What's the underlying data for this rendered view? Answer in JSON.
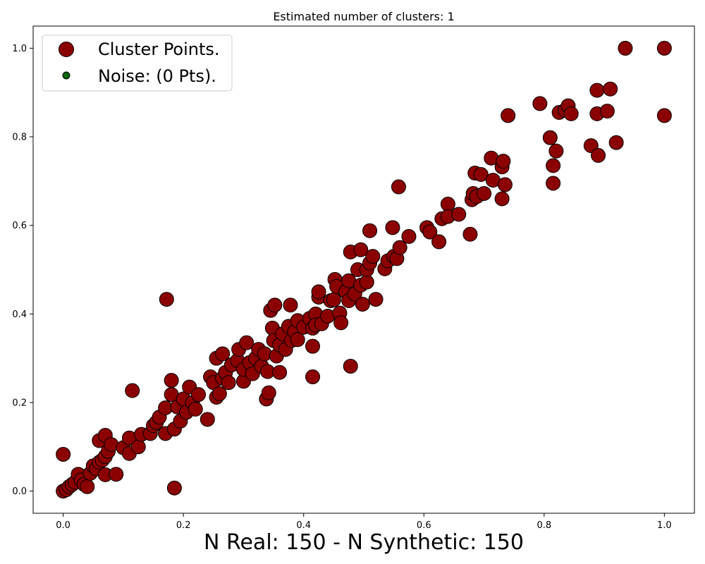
{
  "chart_data": {
    "type": "scatter",
    "title": "Estimated number of clusters: 1",
    "xlabel": "N Real: 150 - N Synthetic: 150",
    "ylabel": "",
    "xlim": [
      -0.05,
      1.05
    ],
    "ylim": [
      -0.05,
      1.05
    ],
    "xticks": [
      "0.0",
      "0.2",
      "0.4",
      "0.6",
      "0.8",
      "1.0"
    ],
    "yticks": [
      "0.0",
      "0.2",
      "0.4",
      "0.6",
      "0.8",
      "1.0"
    ],
    "grid": false,
    "legend_position": "top-left",
    "legend": [
      {
        "label": "Cluster Points.",
        "color": "#8b0000",
        "marker": "large-circle"
      },
      {
        "label": "Noise: (0 Pts).",
        "color": "#006400",
        "marker": "small-circle"
      }
    ],
    "series": [
      {
        "name": "Cluster Points.",
        "color": "#8b0000",
        "points": [
          [
            0.0,
            0.0
          ],
          [
            0.005,
            0.003
          ],
          [
            0.01,
            0.01
          ],
          [
            0.015,
            0.015
          ],
          [
            0.02,
            0.02
          ],
          [
            0.0,
            0.083
          ],
          [
            0.025,
            0.038
          ],
          [
            0.03,
            0.025
          ],
          [
            0.035,
            0.015
          ],
          [
            0.04,
            0.01
          ],
          [
            0.045,
            0.04
          ],
          [
            0.05,
            0.057
          ],
          [
            0.055,
            0.05
          ],
          [
            0.06,
            0.065
          ],
          [
            0.06,
            0.114
          ],
          [
            0.065,
            0.07
          ],
          [
            0.07,
            0.078
          ],
          [
            0.07,
            0.126
          ],
          [
            0.075,
            0.09
          ],
          [
            0.08,
            0.105
          ],
          [
            0.07,
            0.037
          ],
          [
            0.088,
            0.038
          ],
          [
            0.1,
            0.098
          ],
          [
            0.11,
            0.085
          ],
          [
            0.11,
            0.12
          ],
          [
            0.115,
            0.227
          ],
          [
            0.125,
            0.1
          ],
          [
            0.13,
            0.128
          ],
          [
            0.145,
            0.13
          ],
          [
            0.15,
            0.148
          ],
          [
            0.155,
            0.155
          ],
          [
            0.16,
            0.167
          ],
          [
            0.17,
            0.13
          ],
          [
            0.17,
            0.188
          ],
          [
            0.172,
            0.433
          ],
          [
            0.18,
            0.25
          ],
          [
            0.18,
            0.218
          ],
          [
            0.185,
            0.14
          ],
          [
            0.185,
            0.007
          ],
          [
            0.19,
            0.19
          ],
          [
            0.195,
            0.158
          ],
          [
            0.2,
            0.208
          ],
          [
            0.205,
            0.178
          ],
          [
            0.21,
            0.235
          ],
          [
            0.215,
            0.2
          ],
          [
            0.22,
            0.185
          ],
          [
            0.225,
            0.218
          ],
          [
            0.24,
            0.162
          ],
          [
            0.245,
            0.258
          ],
          [
            0.25,
            0.245
          ],
          [
            0.255,
            0.212
          ],
          [
            0.255,
            0.3
          ],
          [
            0.26,
            0.22
          ],
          [
            0.265,
            0.255
          ],
          [
            0.265,
            0.31
          ],
          [
            0.27,
            0.268
          ],
          [
            0.275,
            0.245
          ],
          [
            0.28,
            0.285
          ],
          [
            0.29,
            0.295
          ],
          [
            0.292,
            0.32
          ],
          [
            0.3,
            0.248
          ],
          [
            0.3,
            0.275
          ],
          [
            0.305,
            0.335
          ],
          [
            0.31,
            0.29
          ],
          [
            0.315,
            0.265
          ],
          [
            0.32,
            0.3
          ],
          [
            0.325,
            0.32
          ],
          [
            0.33,
            0.282
          ],
          [
            0.335,
            0.31
          ],
          [
            0.338,
            0.208
          ],
          [
            0.34,
            0.27
          ],
          [
            0.342,
            0.222
          ],
          [
            0.345,
            0.408
          ],
          [
            0.348,
            0.368
          ],
          [
            0.35,
            0.34
          ],
          [
            0.352,
            0.42
          ],
          [
            0.355,
            0.305
          ],
          [
            0.36,
            0.268
          ],
          [
            0.36,
            0.33
          ],
          [
            0.365,
            0.355
          ],
          [
            0.37,
            0.32
          ],
          [
            0.375,
            0.372
          ],
          [
            0.378,
            0.42
          ],
          [
            0.38,
            0.34
          ],
          [
            0.385,
            0.36
          ],
          [
            0.39,
            0.385
          ],
          [
            0.39,
            0.342
          ],
          [
            0.4,
            0.37
          ],
          [
            0.41,
            0.39
          ],
          [
            0.415,
            0.368
          ],
          [
            0.415,
            0.258
          ],
          [
            0.415,
            0.327
          ],
          [
            0.42,
            0.4
          ],
          [
            0.42,
            0.375
          ],
          [
            0.425,
            0.438
          ],
          [
            0.425,
            0.45
          ],
          [
            0.43,
            0.378
          ],
          [
            0.44,
            0.395
          ],
          [
            0.445,
            0.43
          ],
          [
            0.45,
            0.432
          ],
          [
            0.452,
            0.478
          ],
          [
            0.455,
            0.462
          ],
          [
            0.46,
            0.402
          ],
          [
            0.462,
            0.38
          ],
          [
            0.47,
            0.45
          ],
          [
            0.475,
            0.43
          ],
          [
            0.475,
            0.475
          ],
          [
            0.478,
            0.282
          ],
          [
            0.478,
            0.54
          ],
          [
            0.485,
            0.445
          ],
          [
            0.49,
            0.5
          ],
          [
            0.495,
            0.545
          ],
          [
            0.495,
            0.465
          ],
          [
            0.498,
            0.422
          ],
          [
            0.505,
            0.472
          ],
          [
            0.505,
            0.5
          ],
          [
            0.51,
            0.515
          ],
          [
            0.51,
            0.588
          ],
          [
            0.515,
            0.53
          ],
          [
            0.52,
            0.433
          ],
          [
            0.535,
            0.502
          ],
          [
            0.54,
            0.52
          ],
          [
            0.548,
            0.595
          ],
          [
            0.55,
            0.53
          ],
          [
            0.555,
            0.525
          ],
          [
            0.558,
            0.687
          ],
          [
            0.56,
            0.55
          ],
          [
            0.575,
            0.575
          ],
          [
            0.605,
            0.595
          ],
          [
            0.61,
            0.585
          ],
          [
            0.625,
            0.563
          ],
          [
            0.63,
            0.615
          ],
          [
            0.64,
            0.648
          ],
          [
            0.64,
            0.62
          ],
          [
            0.658,
            0.625
          ],
          [
            0.677,
            0.58
          ],
          [
            0.68,
            0.658
          ],
          [
            0.682,
            0.672
          ],
          [
            0.685,
            0.718
          ],
          [
            0.688,
            0.665
          ],
          [
            0.695,
            0.715
          ],
          [
            0.7,
            0.672
          ],
          [
            0.712,
            0.752
          ],
          [
            0.715,
            0.702
          ],
          [
            0.73,
            0.732
          ],
          [
            0.732,
            0.745
          ],
          [
            0.73,
            0.66
          ],
          [
            0.735,
            0.692
          ],
          [
            0.74,
            0.848
          ],
          [
            0.793,
            0.875
          ],
          [
            0.81,
            0.798
          ],
          [
            0.815,
            0.735
          ],
          [
            0.815,
            0.695
          ],
          [
            0.82,
            0.768
          ],
          [
            0.825,
            0.855
          ],
          [
            0.835,
            0.86
          ],
          [
            0.84,
            0.87
          ],
          [
            0.845,
            0.852
          ],
          [
            0.878,
            0.78
          ],
          [
            0.888,
            0.852
          ],
          [
            0.888,
            0.905
          ],
          [
            0.89,
            0.758
          ],
          [
            0.905,
            0.858
          ],
          [
            0.91,
            0.908
          ],
          [
            0.92,
            0.787
          ],
          [
            0.935,
            1.0
          ],
          [
            1.0,
            1.0
          ],
          [
            1.0,
            0.848
          ]
        ]
      }
    ]
  }
}
